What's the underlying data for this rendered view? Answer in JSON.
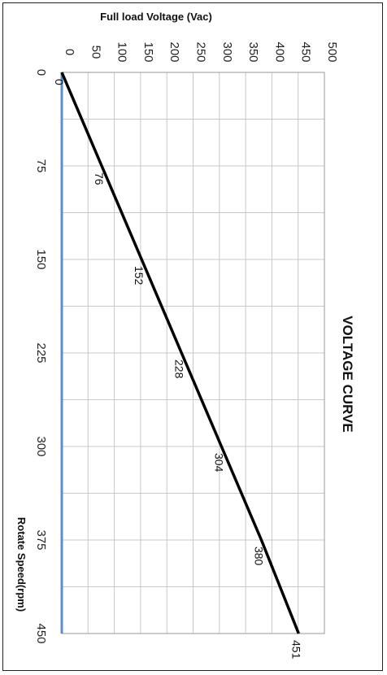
{
  "chart_data": {
    "type": "line",
    "title": "VOLTAGE CURVE",
    "xlabel": "Rotate Speed(rpm)",
    "ylabel": "Full load Voltage (Vac)",
    "xlim": [
      0,
      450
    ],
    "ylim": [
      0,
      500
    ],
    "x_ticks": [
      "0",
      "75",
      "150",
      "225",
      "300",
      "375",
      "450"
    ],
    "y_ticks": [
      "0",
      "50",
      "100",
      "150",
      "200",
      "250",
      "300",
      "350",
      "400",
      "450",
      "500"
    ],
    "grid": true,
    "orientation": "rotated 90 degrees clockwise",
    "series": [
      {
        "x": [
          0,
          75,
          150,
          225,
          300,
          375,
          450
        ],
        "values": [
          0,
          76,
          152,
          228,
          304,
          380,
          451
        ],
        "labels": [
          "0",
          "76",
          "152",
          "228",
          "304",
          "380",
          "451"
        ],
        "color": "#000000"
      }
    ],
    "colors": {
      "line": "#000000",
      "grid": "#c8c8c8",
      "x_axis": "#5b8fc9",
      "border": "#9a9a9a"
    }
  }
}
